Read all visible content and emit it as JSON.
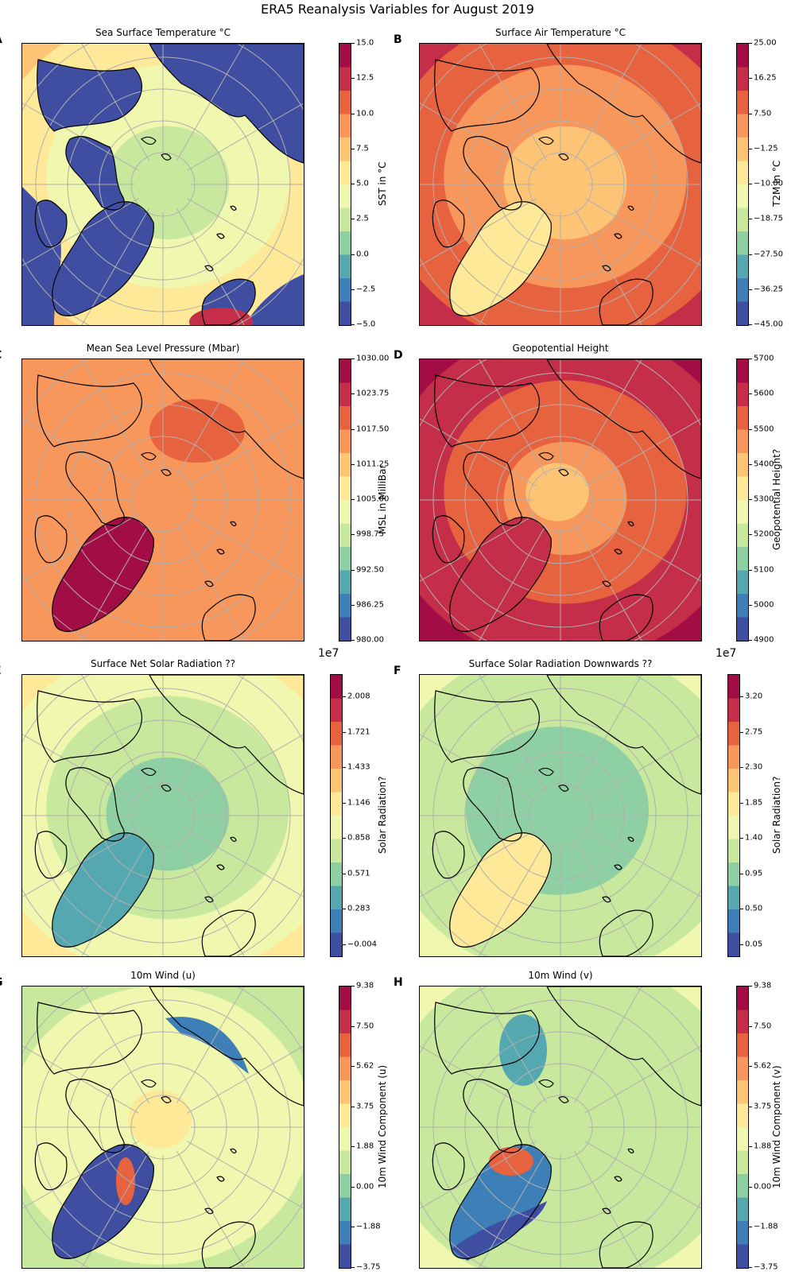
{
  "suptitle": "ERA5 Reanalysis Variables for August 2019",
  "colormap": [
    "#3f4ea0",
    "#3e7fb8",
    "#55a8af",
    "#8ed0a3",
    "#c7e89d",
    "#f0f7ae",
    "#fde997",
    "#fdc476",
    "#f8975b",
    "#e7623f",
    "#c42e48",
    "#a20d45"
  ],
  "coastline_color": "#000000",
  "graticule_color": "#b0b0b0",
  "panels": [
    {
      "letter": "A",
      "title": "Sea Surface Temperature °C",
      "cbar_label": "SST in °C",
      "ticks": [
        "15.0",
        "12.5",
        "10.0",
        "7.5",
        "5.0",
        "2.5",
        "0.0",
        "−2.5",
        "−5.0"
      ],
      "multiplier": "",
      "pattern": "sst",
      "levels": {
        "pole": 0.35,
        "rim": 0.62,
        "land": 0.0,
        "ocean_mask": "#3f4ea0"
      }
    },
    {
      "letter": "B",
      "title": "Surface Air Temperature °C",
      "cbar_label": "T2M in °C",
      "ticks": [
        "25.00",
        "16.25",
        "7.50",
        "−1.25",
        "−10.00",
        "−18.75",
        "−27.50",
        "−36.25",
        "−45.00"
      ],
      "multiplier": "",
      "pattern": "t2m",
      "levels": {
        "pole": 0.63,
        "rim": 0.84,
        "greenland": 0.52
      }
    },
    {
      "letter": "C",
      "title": "Mean Sea Level Pressure (Mbar)",
      "cbar_label": "MSL in MilliBar",
      "ticks": [
        "1030.00",
        "1023.75",
        "1017.50",
        "1011.25",
        "1005.00",
        "998.75",
        "992.50",
        "986.25",
        "980.00"
      ],
      "multiplier": "",
      "pattern": "msl",
      "levels": {
        "pole": 0.72,
        "rim": 0.72,
        "greenland": 0.93,
        "high": 0.8
      }
    },
    {
      "letter": "D",
      "title": "Geopotential Height",
      "cbar_label": "Geopotential Height?",
      "ticks": [
        "5700",
        "5600",
        "5500",
        "5400",
        "5300",
        "5200",
        "5100",
        "5000",
        "4900"
      ],
      "multiplier": "",
      "pattern": "geo",
      "levels": {
        "pole": 0.66,
        "rim": 0.95,
        "greenland": 0.85
      }
    },
    {
      "letter": "E",
      "title": "Surface Net Solar Radiation ??",
      "cbar_label": "Solar Radiation?",
      "ticks": [
        "2.008",
        "1.721",
        "1.433",
        "1.146",
        "0.858",
        "0.571",
        "0.283",
        "−0.004"
      ],
      "multiplier": "1e7",
      "pattern": "snsr",
      "levels": {
        "pole": 0.26,
        "rim": 0.5,
        "greenland": 0.24
      }
    },
    {
      "letter": "F",
      "title": "Surface Solar Radiation Downwards ??",
      "cbar_label": "Solar Radiation?",
      "ticks": [
        "3.20",
        "2.75",
        "2.30",
        "1.85",
        "1.40",
        "0.95",
        "0.50",
        "0.05"
      ],
      "multiplier": "1e7",
      "pattern": "ssrd",
      "levels": {
        "pole": 0.28,
        "rim": 0.42,
        "greenland": 0.58
      }
    },
    {
      "letter": "G",
      "title": "10m Wind (u)",
      "cbar_label": "10m Wind Component (u)",
      "ticks": [
        "9.38",
        "7.50",
        "5.62",
        "3.75",
        "1.88",
        "0.00",
        "−1.88",
        "−3.75"
      ],
      "multiplier": "",
      "pattern": "u10",
      "levels": {
        "pole": 0.5,
        "rim": 0.38,
        "greenland": 0.08
      }
    },
    {
      "letter": "H",
      "title": "10m Wind (v)",
      "cbar_label": "10m Wind Component (v)",
      "ticks": [
        "9.38",
        "7.50",
        "5.62",
        "3.75",
        "1.88",
        "0.00",
        "−1.88",
        "−3.75"
      ],
      "multiplier": "",
      "pattern": "v10",
      "levels": {
        "pole": 0.36,
        "rim": 0.42,
        "greenland": 0.1
      }
    }
  ]
}
